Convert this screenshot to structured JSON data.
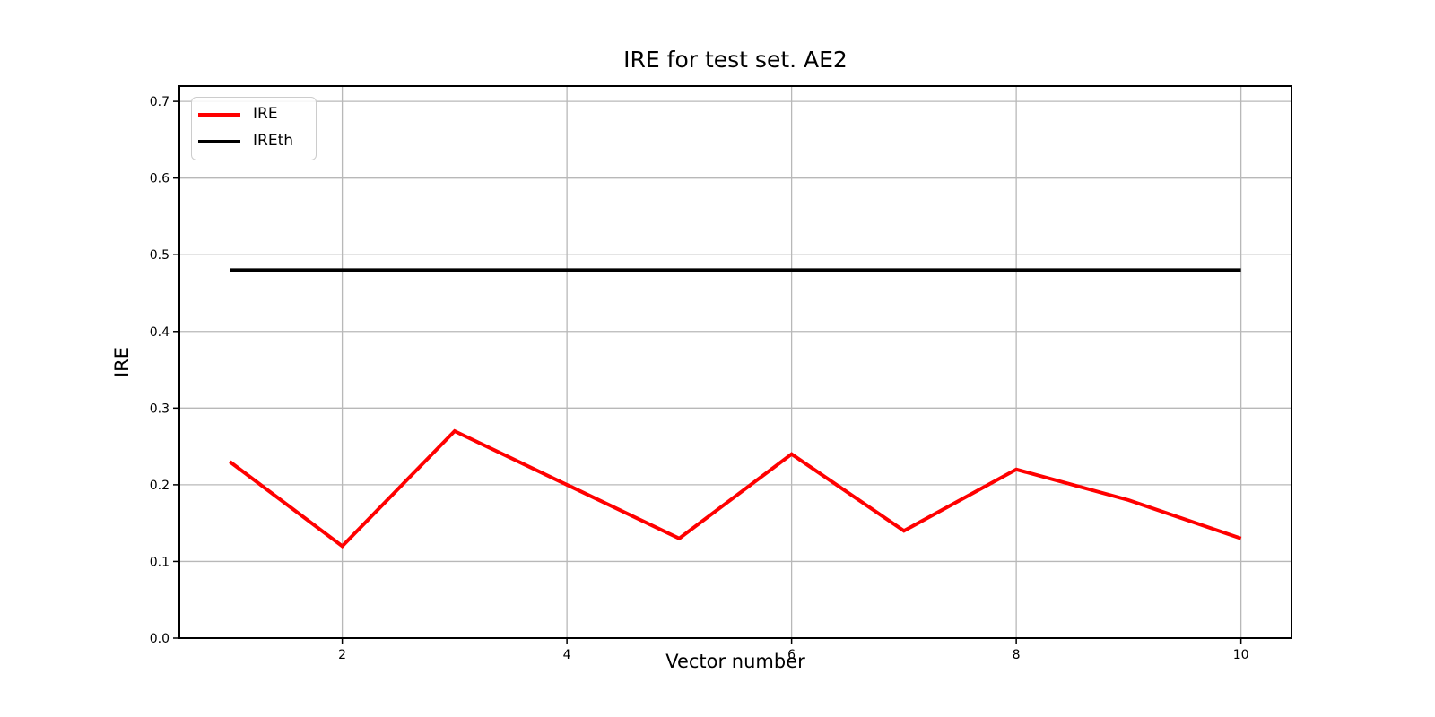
{
  "chart_data": {
    "type": "line",
    "title": "IRE for test set. AE2",
    "xlabel": "Vector number",
    "ylabel": "IRE",
    "x": [
      1,
      2,
      3,
      4,
      5,
      6,
      7,
      8,
      9,
      10
    ],
    "series": [
      {
        "name": "IRE",
        "color": "#ff0000",
        "values": [
          0.23,
          0.12,
          0.27,
          0.2,
          0.13,
          0.24,
          0.14,
          0.22,
          0.18,
          0.13
        ]
      },
      {
        "name": "IREth",
        "color": "#000000",
        "values": [
          0.48,
          0.48,
          0.48,
          0.48,
          0.48,
          0.48,
          0.48,
          0.48,
          0.48,
          0.48
        ]
      }
    ],
    "xlim": [
      0.55,
      10.45
    ],
    "ylim": [
      0,
      0.72
    ],
    "xticks": [
      2,
      4,
      6,
      8,
      10
    ],
    "yticks": [
      0.0,
      0.1,
      0.2,
      0.3,
      0.4,
      0.5,
      0.6,
      0.7
    ],
    "grid": true,
    "grid_color": "#b8b8b8",
    "axes_color": "#000000",
    "background": "#ffffff",
    "legend_position": "upper-left"
  }
}
